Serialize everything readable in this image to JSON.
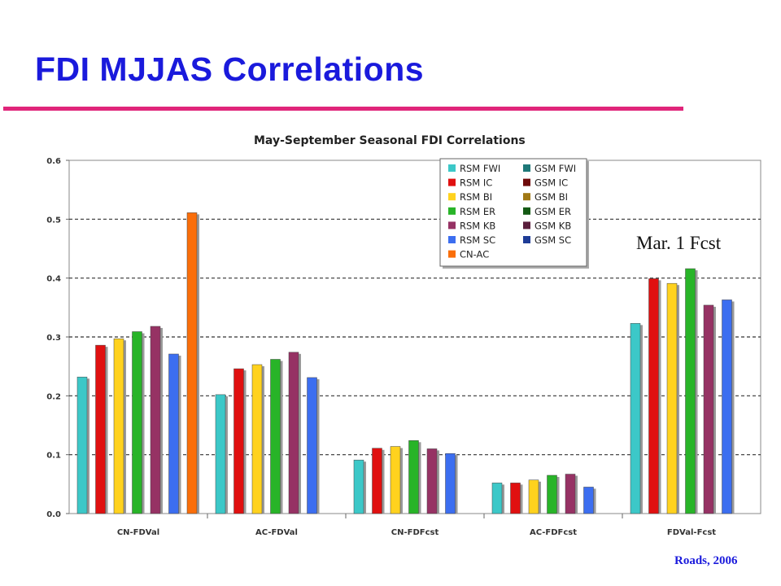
{
  "slide": {
    "title": "FDI MJJAS Correlations",
    "annotation": "Mar. 1 Fcst",
    "credit": "Roads, 2006"
  },
  "colors": {
    "title": "#1a1adc",
    "rule": "#e0257a"
  },
  "chart_data": {
    "type": "bar",
    "title": "May-September Seasonal FDI Correlations",
    "xlabel": "",
    "ylabel": "",
    "ylim": [
      0,
      0.6
    ],
    "yticks": [
      "0.0",
      "0.1",
      "0.2",
      "0.3",
      "0.4",
      "0.5",
      "0.6"
    ],
    "grid": "horizontal dashed",
    "legend_position": "top-right",
    "categories": [
      "CN-FDVal",
      "AC-FDVal",
      "CN-FDFcst",
      "AC-FDFcst",
      "FDVal-Fcst"
    ],
    "series": [
      {
        "name": "RSM FWI",
        "color": "#3cc8c8",
        "values": [
          0.232,
          0.202,
          0.091,
          0.052,
          0.323
        ]
      },
      {
        "name": "RSM IC",
        "color": "#e01010",
        "values": [
          0.286,
          0.246,
          0.111,
          0.052,
          0.399
        ]
      },
      {
        "name": "RSM BI",
        "color": "#ffd21e",
        "values": [
          0.297,
          0.253,
          0.114,
          0.057,
          0.391
        ]
      },
      {
        "name": "RSM ER",
        "color": "#28b428",
        "values": [
          0.309,
          0.262,
          0.124,
          0.065,
          0.416
        ]
      },
      {
        "name": "RSM KB",
        "color": "#963264",
        "values": [
          0.318,
          0.274,
          0.11,
          0.067,
          0.354
        ]
      },
      {
        "name": "RSM SC",
        "color": "#3c6ef0",
        "values": [
          0.271,
          0.231,
          0.102,
          0.045,
          0.363
        ]
      },
      {
        "name": "CN-AC",
        "color": "#fa6e0a",
        "values": [
          0.511,
          null,
          null,
          null,
          null
        ]
      },
      {
        "name": "GSM FWI",
        "color": "#1e7878",
        "values": [
          null,
          null,
          null,
          null,
          null
        ]
      },
      {
        "name": "GSM IC",
        "color": "#6e0a0a",
        "values": [
          null,
          null,
          null,
          null,
          null
        ]
      },
      {
        "name": "GSM BI",
        "color": "#a07814",
        "values": [
          null,
          null,
          null,
          null,
          null
        ]
      },
      {
        "name": "GSM ER",
        "color": "#145a14",
        "values": [
          null,
          null,
          null,
          null,
          null
        ]
      },
      {
        "name": "GSM KB",
        "color": "#5a1e3c",
        "values": [
          null,
          null,
          null,
          null,
          null
        ]
      },
      {
        "name": "GSM SC",
        "color": "#1e3c96",
        "values": [
          null,
          null,
          null,
          null,
          null
        ]
      }
    ]
  }
}
